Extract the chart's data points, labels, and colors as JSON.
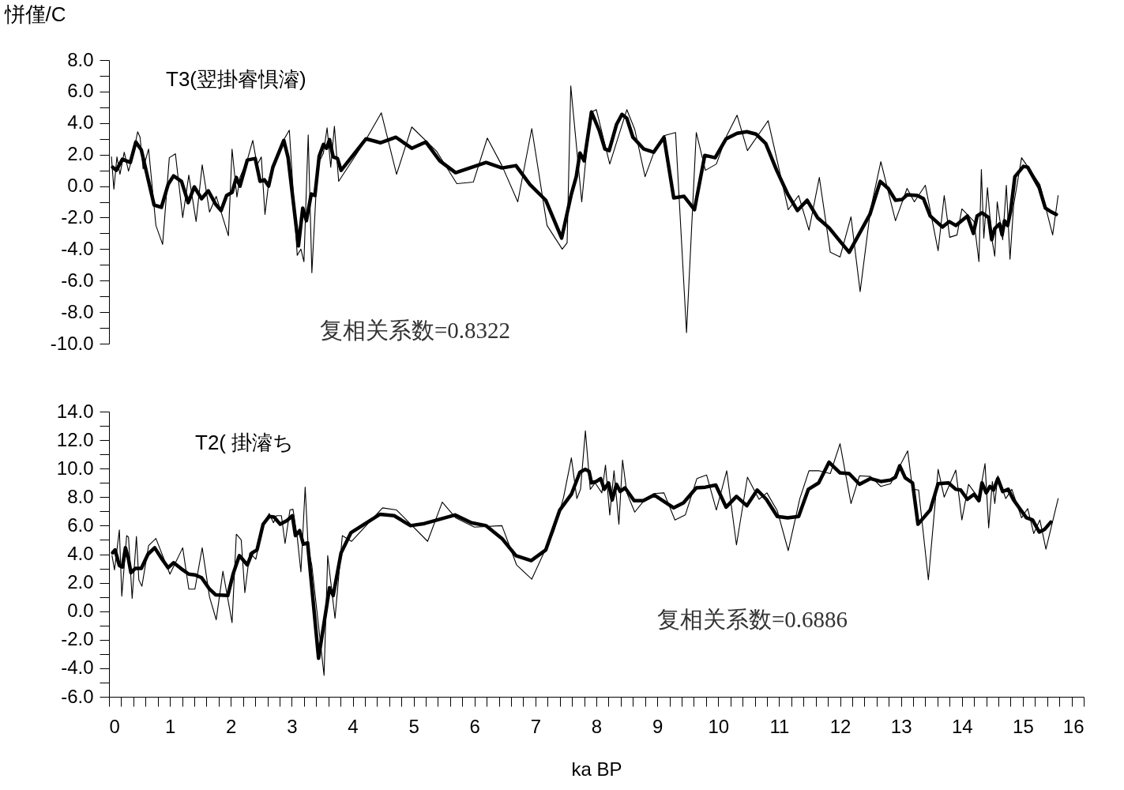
{
  "chart_data": [
    {
      "type": "line",
      "ylabel": "恲僅/C",
      "annotations": [
        "T3(翌掛睿惧濬)",
        "复相关系数=0.8322"
      ],
      "tick_labels": "y",
      "xlim": [
        0,
        16
      ],
      "ylim": [
        -10,
        8
      ],
      "yticks": [
        {
          "value": -10,
          "label": "-10.0"
        },
        {
          "value": -9,
          "label": null
        },
        {
          "value": -8,
          "label": "-8.0"
        },
        {
          "value": -7,
          "label": null
        },
        {
          "value": -6,
          "label": "-6.0"
        },
        {
          "value": -5,
          "label": null
        },
        {
          "value": -4,
          "label": "-4.0"
        },
        {
          "value": -3,
          "label": null
        },
        {
          "value": -2,
          "label": "-2.0"
        },
        {
          "value": -1,
          "label": null
        },
        {
          "value": 0,
          "label": "0.0"
        },
        {
          "value": 1,
          "label": null
        },
        {
          "value": 2,
          "label": "2.0"
        },
        {
          "value": 3,
          "label": null
        },
        {
          "value": 4,
          "label": "4.0"
        },
        {
          "value": 5,
          "label": null
        },
        {
          "value": 6,
          "label": "6.0"
        },
        {
          "value": 7,
          "label": null
        },
        {
          "value": 8,
          "label": "8.0"
        }
      ],
      "series": [
        {
          "color": "#000000",
          "x": [
            0.04,
            0.08,
            0.13,
            0.18,
            0.25,
            0.32,
            0.39,
            0.47,
            0.51,
            0.56,
            0.65,
            0.77,
            0.88,
            0.99,
            1.09,
            1.21,
            1.31,
            1.43,
            1.53,
            1.65,
            1.76,
            1.96,
            2.02,
            2.1,
            2.15,
            2.27,
            2.36,
            2.43,
            2.5,
            2.56,
            2.63,
            2.71,
            2.79,
            2.87,
            2.96,
            3.09,
            3.15,
            3.2,
            3.27,
            3.33,
            3.4,
            3.45,
            3.52,
            3.58,
            3.64,
            3.7,
            3.77,
            4.21,
            4.47,
            4.72,
            4.97,
            5.38,
            5.71,
            5.98,
            6.21,
            6.45,
            6.71,
            6.94,
            7.19,
            7.44,
            7.52,
            7.58,
            7.76,
            7.9,
            8.0,
            8.22,
            8.5,
            8.63,
            8.8,
            8.96,
            9.11,
            9.3,
            9.48,
            9.64,
            9.79,
            9.97,
            10.14,
            10.31,
            10.48,
            10.82,
            10.96,
            11.15,
            11.32,
            11.49,
            11.66,
            11.84,
            12.0,
            12.18,
            12.33,
            12.5,
            12.67,
            12.91,
            13.1,
            13.22,
            13.4,
            13.61,
            13.71,
            13.8,
            13.92,
            14.0,
            14.2,
            14.28,
            14.32,
            14.36,
            14.42,
            14.49,
            14.54,
            14.58,
            14.67,
            14.73,
            14.79,
            14.85,
            14.98,
            15.28,
            15.49,
            15.58
          ],
          "values": [
            1.85,
            -0.2,
            1.85,
            0.75,
            2.15,
            0.95,
            1.9,
            3.45,
            3.1,
            1.1,
            2.35,
            -2.5,
            -3.7,
            1.8,
            2.05,
            -2.0,
            0.7,
            -2.25,
            1.35,
            -1.65,
            -0.65,
            -3.15,
            2.35,
            -0.7,
            0.55,
            1.65,
            2.9,
            1.35,
            1.85,
            -1.8,
            0.5,
            1.2,
            2.1,
            2.95,
            3.55,
            -4.4,
            -4.0,
            -4.8,
            3.25,
            -5.5,
            -0.3,
            1.55,
            2.1,
            3.7,
            1.2,
            3.8,
            0.3,
            2.9,
            4.65,
            0.75,
            3.75,
            2.2,
            0.15,
            0.25,
            3.05,
            1.3,
            -1.0,
            3.65,
            -2.5,
            -4.0,
            -3.6,
            6.35,
            -1.0,
            4.65,
            4.85,
            1.4,
            4.85,
            3.6,
            0.6,
            2.3,
            3.2,
            3.4,
            -9.3,
            3.4,
            1.0,
            1.4,
            3.2,
            4.5,
            2.25,
            4.15,
            1.75,
            -1.5,
            -0.6,
            -2.8,
            0.55,
            -4.2,
            -4.5,
            -1.95,
            -6.7,
            -1.5,
            1.55,
            -2.2,
            -0.15,
            -1.0,
            0.05,
            -4.1,
            -0.6,
            -3.25,
            -3.1,
            -1.45,
            -2.25,
            -4.8,
            1.05,
            -3.3,
            -0.1,
            -3.3,
            -4.45,
            -1.0,
            -3.4,
            0.05,
            -4.65,
            -1.2,
            1.8,
            0.1,
            -3.1,
            -0.6
          ]
        },
        {
          "color": "#000000",
          "x": [
            0.06,
            0.12,
            0.22,
            0.35,
            0.44,
            0.53,
            0.74,
            0.86,
            0.97,
            1.06,
            1.19,
            1.3,
            1.4,
            1.52,
            1.63,
            1.75,
            1.84,
            1.93,
            2.02,
            2.09,
            2.15,
            2.27,
            2.4,
            2.48,
            2.55,
            2.62,
            2.69,
            2.87,
            2.94,
            3.11,
            3.18,
            3.24,
            3.32,
            3.38,
            3.45,
            3.52,
            3.57,
            3.62,
            3.68,
            3.75,
            3.81,
            4.22,
            4.46,
            4.71,
            4.97,
            5.2,
            5.43,
            5.69,
            6.19,
            6.45,
            6.68,
            6.91,
            7.17,
            7.43,
            7.59,
            7.67,
            7.73,
            7.8,
            7.92,
            8.05,
            8.14,
            8.21,
            8.33,
            8.42,
            8.5,
            8.6,
            8.78,
            8.94,
            9.11,
            9.27,
            9.44,
            9.61,
            9.78,
            9.95,
            10.13,
            10.31,
            10.47,
            10.62,
            10.78,
            10.96,
            11.14,
            11.3,
            11.46,
            11.63,
            11.82,
            12.0,
            12.15,
            12.49,
            12.66,
            12.79,
            12.91,
            13.02,
            13.1,
            13.27,
            13.37,
            13.48,
            13.68,
            13.79,
            13.9,
            14.09,
            14.19,
            14.25,
            14.33,
            14.44,
            14.49,
            14.54,
            14.62,
            14.66,
            14.7,
            14.75,
            14.8,
            14.87,
            15.01,
            15.08,
            15.27,
            15.37,
            15.45,
            15.55
          ],
          "values": [
            1.2,
            1.0,
            1.7,
            1.5,
            2.8,
            2.3,
            -1.2,
            -1.35,
            0.1,
            0.65,
            0.3,
            -1.05,
            -0.05,
            -0.8,
            -0.3,
            -1.15,
            -1.55,
            -0.6,
            -0.4,
            0.55,
            0.0,
            1.65,
            1.75,
            0.3,
            0.4,
            0.0,
            1.2,
            2.9,
            1.8,
            -3.8,
            -1.4,
            -2.2,
            -0.5,
            -0.6,
            1.9,
            2.65,
            2.4,
            2.95,
            1.85,
            1.75,
            1.0,
            3.0,
            2.75,
            3.1,
            2.4,
            2.8,
            1.6,
            0.85,
            1.5,
            1.15,
            1.3,
            0.1,
            -0.9,
            -3.3,
            -0.5,
            0.6,
            2.1,
            1.6,
            4.7,
            3.5,
            2.35,
            2.25,
            3.9,
            4.55,
            4.3,
            3.1,
            2.35,
            2.15,
            3.1,
            -0.75,
            -0.65,
            -1.5,
            1.95,
            1.8,
            3.0,
            3.35,
            3.45,
            3.3,
            2.7,
            1.0,
            -0.5,
            -1.55,
            -0.9,
            -2.0,
            -2.65,
            -3.5,
            -4.2,
            -1.8,
            0.3,
            -0.15,
            -0.9,
            -0.85,
            -0.55,
            -0.6,
            -0.8,
            -1.9,
            -2.6,
            -2.25,
            -2.5,
            -1.9,
            -3.0,
            -1.9,
            -1.7,
            -2.0,
            -3.4,
            -2.7,
            -2.4,
            -3.1,
            -2.2,
            -2.5,
            -1.6,
            0.6,
            1.25,
            1.2,
            -0.1,
            -1.4,
            -1.6,
            -1.8
          ]
        }
      ]
    },
    {
      "type": "line",
      "xlabel": "ka BP",
      "annotations": [
        "T2(  掛濬ち",
        "复相关系数=0.6886"
      ],
      "xlim": [
        0,
        16
      ],
      "ylim": [
        -6,
        14
      ],
      "xticks": [
        0,
        {
          "value": 0.2,
          "label": null
        },
        {
          "value": 0.4,
          "label": null
        },
        {
          "value": 0.6,
          "label": null
        },
        {
          "value": 0.8,
          "label": null
        },
        1,
        {
          "value": 1.2,
          "label": null
        },
        {
          "value": 1.4,
          "label": null
        },
        {
          "value": 1.6,
          "label": null
        },
        {
          "value": 1.8,
          "label": null
        },
        2,
        {
          "value": 2.2,
          "label": null
        },
        {
          "value": 2.4,
          "label": null
        },
        {
          "value": 2.6,
          "label": null
        },
        {
          "value": 2.8,
          "label": null
        },
        3,
        {
          "value": 3.2,
          "label": null
        },
        {
          "value": 3.4,
          "label": null
        },
        {
          "value": 3.6,
          "label": null
        },
        {
          "value": 3.8,
          "label": null
        },
        4,
        {
          "value": 4.2,
          "label": null
        },
        {
          "value": 4.4,
          "label": null
        },
        {
          "value": 4.6,
          "label": null
        },
        {
          "value": 4.8,
          "label": null
        },
        5,
        {
          "value": 5.2,
          "label": null
        },
        {
          "value": 5.4,
          "label": null
        },
        {
          "value": 5.6,
          "label": null
        },
        {
          "value": 5.8,
          "label": null
        },
        6,
        {
          "value": 6.2,
          "label": null
        },
        {
          "value": 6.4,
          "label": null
        },
        {
          "value": 6.6,
          "label": null
        },
        {
          "value": 6.8,
          "label": null
        },
        7,
        {
          "value": 7.2,
          "label": null
        },
        {
          "value": 7.4,
          "label": null
        },
        {
          "value": 7.6,
          "label": null
        },
        {
          "value": 7.8,
          "label": null
        },
        8,
        {
          "value": 8.2,
          "label": null
        },
        {
          "value": 8.4,
          "label": null
        },
        {
          "value": 8.6,
          "label": null
        },
        {
          "value": 8.8,
          "label": null
        },
        9,
        {
          "value": 9.2,
          "label": null
        },
        {
          "value": 9.4,
          "label": null
        },
        {
          "value": 9.6,
          "label": null
        },
        {
          "value": 9.8,
          "label": null
        },
        10,
        {
          "value": 10.2,
          "label": null
        },
        {
          "value": 10.4,
          "label": null
        },
        {
          "value": 10.6,
          "label": null
        },
        {
          "value": 10.8,
          "label": null
        },
        11,
        {
          "value": 11.2,
          "label": null
        },
        {
          "value": 11.4,
          "label": null
        },
        {
          "value": 11.6,
          "label": null
        },
        {
          "value": 11.8,
          "label": null
        },
        12,
        {
          "value": 12.2,
          "label": null
        },
        {
          "value": 12.4,
          "label": null
        },
        {
          "value": 12.6,
          "label": null
        },
        {
          "value": 12.8,
          "label": null
        },
        13,
        {
          "value": 13.2,
          "label": null
        },
        {
          "value": 13.4,
          "label": null
        },
        {
          "value": 13.6,
          "label": null
        },
        {
          "value": 13.8,
          "label": null
        },
        14,
        {
          "value": 14.2,
          "label": null
        },
        {
          "value": 14.4,
          "label": null
        },
        {
          "value": 14.6,
          "label": null
        },
        {
          "value": 14.8,
          "label": null
        },
        15,
        {
          "value": 15.2,
          "label": null
        },
        {
          "value": 15.4,
          "label": null
        },
        {
          "value": 15.6,
          "label": null
        },
        {
          "value": 15.8,
          "label": null
        },
        16
      ],
      "yticks": [
        {
          "value": -6,
          "label": "-6.0"
        },
        {
          "value": -5,
          "label": null
        },
        {
          "value": -4,
          "label": "-4.0"
        },
        {
          "value": -3,
          "label": null
        },
        {
          "value": -2,
          "label": "-2.0"
        },
        {
          "value": -1,
          "label": null
        },
        {
          "value": 0,
          "label": "0.0"
        },
        {
          "value": 1,
          "label": null
        },
        {
          "value": 2,
          "label": "2.0"
        },
        {
          "value": 3,
          "label": null
        },
        {
          "value": 4,
          "label": "4.0"
        },
        {
          "value": 5,
          "label": null
        },
        {
          "value": 6,
          "label": "6.0"
        },
        {
          "value": 7,
          "label": null
        },
        {
          "value": 8,
          "label": "8.0"
        },
        {
          "value": 9,
          "label": null
        },
        {
          "value": 10,
          "label": "10.0"
        },
        {
          "value": 11,
          "label": null
        },
        {
          "value": 12,
          "label": "12.0"
        },
        {
          "value": 13,
          "label": null
        },
        {
          "value": 14,
          "label": "14.0"
        }
      ],
      "series": [
        {
          "color": "#000000",
          "x": [
            0.05,
            0.09,
            0.17,
            0.21,
            0.29,
            0.32,
            0.38,
            0.45,
            0.49,
            0.54,
            0.65,
            0.77,
            1.0,
            1.21,
            1.31,
            1.41,
            1.53,
            1.65,
            1.76,
            1.87,
            2.02,
            2.09,
            2.17,
            2.23,
            2.31,
            2.41,
            2.53,
            2.63,
            2.7,
            2.75,
            2.83,
            2.89,
            2.97,
            3.02,
            3.09,
            3.15,
            3.22,
            3.27,
            3.33,
            3.53,
            3.59,
            3.71,
            3.83,
            3.98,
            4.49,
            4.72,
            5.23,
            5.47,
            5.69,
            6.0,
            6.45,
            6.69,
            6.94,
            7.3,
            7.46,
            7.59,
            7.68,
            7.74,
            7.82,
            7.9,
            7.98,
            8.09,
            8.15,
            8.22,
            8.29,
            8.37,
            8.43,
            8.5,
            8.63,
            8.78,
            8.95,
            9.11,
            9.29,
            9.46,
            9.65,
            9.81,
            9.97,
            10.14,
            10.3,
            10.48,
            10.67,
            10.8,
            10.97,
            11.15,
            11.34,
            11.49,
            11.66,
            11.84,
            12.0,
            12.18,
            12.32,
            12.5,
            12.67,
            12.83,
            13.11,
            13.19,
            13.29,
            13.45,
            13.61,
            13.71,
            13.9,
            14.0,
            14.11,
            14.28,
            14.38,
            14.44,
            14.5,
            14.54,
            14.59,
            14.72,
            14.82,
            14.98,
            15.08,
            15.18,
            15.28,
            15.38,
            15.58
          ],
          "values": [
            3.9,
            2.9,
            5.7,
            1.05,
            5.3,
            5.2,
            0.9,
            5.25,
            2.2,
            1.75,
            4.6,
            5.1,
            2.6,
            4.45,
            1.55,
            1.55,
            4.45,
            1.0,
            -0.6,
            2.8,
            -0.8,
            5.4,
            5.0,
            1.3,
            4.1,
            3.65,
            6.1,
            6.85,
            6.2,
            6.7,
            6.7,
            4.75,
            7.1,
            7.15,
            5.2,
            2.75,
            8.7,
            4.45,
            3.2,
            -4.5,
            3.9,
            -0.5,
            5.3,
            4.9,
            7.25,
            7.1,
            4.9,
            7.65,
            6.55,
            5.9,
            6.0,
            3.25,
            2.25,
            5.6,
            7.95,
            10.75,
            7.9,
            8.55,
            12.65,
            8.55,
            9.0,
            8.3,
            10.25,
            6.75,
            9.85,
            6.1,
            10.6,
            8.3,
            6.95,
            7.75,
            8.25,
            8.3,
            6.4,
            6.75,
            9.3,
            9.55,
            7.1,
            9.85,
            4.65,
            9.4,
            7.85,
            8.3,
            7.05,
            4.25,
            7.9,
            9.85,
            9.85,
            9.65,
            11.75,
            7.55,
            9.5,
            9.45,
            8.75,
            8.95,
            11.25,
            8.55,
            8.5,
            2.2,
            9.95,
            8.0,
            9.9,
            6.4,
            8.9,
            7.9,
            10.35,
            5.85,
            9.1,
            7.55,
            9.5,
            7.9,
            8.55,
            6.55,
            7.2,
            5.45,
            6.4,
            4.35,
            7.9
          ]
        },
        {
          "color": "#000000",
          "x": [
            0.06,
            0.1,
            0.17,
            0.22,
            0.27,
            0.32,
            0.36,
            0.43,
            0.53,
            0.64,
            0.75,
            0.87,
            0.97,
            1.06,
            1.18,
            1.31,
            1.41,
            1.52,
            1.65,
            1.75,
            1.95,
            2.04,
            2.14,
            2.27,
            2.35,
            2.43,
            2.53,
            2.63,
            2.71,
            2.81,
            2.92,
            3.01,
            3.06,
            3.13,
            3.19,
            3.26,
            3.44,
            3.62,
            3.68,
            3.81,
            3.97,
            4.45,
            4.68,
            4.95,
            5.18,
            5.68,
            5.95,
            6.19,
            6.45,
            6.68,
            6.93,
            7.17,
            7.4,
            7.59,
            7.73,
            7.82,
            7.88,
            7.92,
            8.0,
            8.07,
            8.13,
            8.2,
            8.26,
            8.33,
            8.39,
            8.47,
            8.62,
            8.77,
            8.95,
            9.27,
            9.43,
            9.64,
            9.79,
            9.96,
            10.13,
            10.3,
            10.47,
            10.64,
            10.79,
            10.97,
            11.14,
            11.32,
            11.48,
            11.65,
            11.82,
            12.0,
            12.15,
            12.32,
            12.5,
            12.67,
            12.83,
            12.91,
            12.98,
            13.07,
            13.19,
            13.28,
            13.48,
            13.61,
            13.78,
            13.9,
            13.98,
            14.09,
            14.2,
            14.28,
            14.33,
            14.4,
            14.46,
            14.52,
            14.59,
            14.67,
            14.76,
            14.85,
            14.95,
            15.06,
            15.16,
            15.27,
            15.36,
            15.46
          ],
          "values": [
            4.1,
            4.3,
            3.2,
            3.1,
            4.45,
            3.65,
            2.7,
            3.0,
            3.0,
            4.0,
            4.45,
            3.65,
            3.05,
            3.4,
            3.0,
            2.6,
            2.55,
            2.35,
            1.55,
            1.15,
            1.1,
            2.65,
            3.9,
            3.25,
            4.1,
            4.3,
            6.1,
            6.65,
            6.6,
            6.1,
            6.35,
            6.7,
            5.3,
            5.65,
            4.7,
            4.8,
            -3.3,
            1.65,
            1.1,
            4.1,
            5.5,
            6.8,
            6.7,
            6.0,
            6.15,
            6.75,
            6.2,
            6.0,
            5.1,
            3.9,
            3.55,
            4.3,
            7.1,
            8.2,
            9.75,
            9.95,
            9.8,
            9.0,
            9.1,
            9.3,
            8.55,
            9.0,
            7.8,
            8.9,
            8.4,
            8.65,
            7.75,
            7.75,
            8.15,
            7.25,
            7.6,
            8.65,
            8.7,
            8.85,
            7.3,
            8.05,
            7.4,
            8.5,
            7.85,
            6.65,
            6.55,
            6.65,
            8.55,
            9.0,
            10.45,
            9.7,
            9.65,
            8.9,
            9.3,
            9.1,
            9.2,
            9.4,
            10.2,
            9.35,
            9.0,
            6.1,
            7.1,
            8.95,
            9.0,
            8.55,
            8.5,
            7.85,
            8.2,
            7.75,
            9.0,
            8.3,
            8.75,
            8.5,
            9.3,
            8.4,
            8.55,
            7.8,
            7.2,
            6.55,
            6.4,
            5.55,
            5.75,
            6.25
          ]
        }
      ]
    }
  ]
}
